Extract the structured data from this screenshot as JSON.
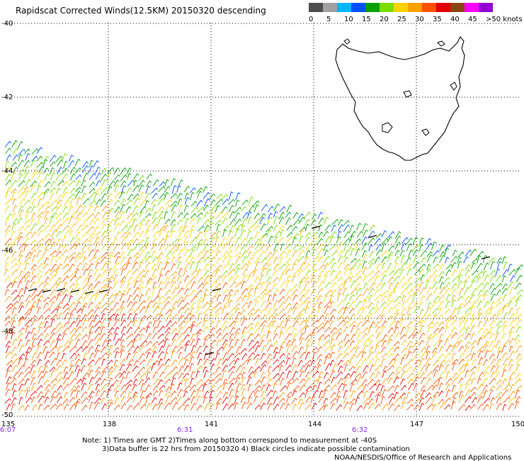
{
  "title": "Rapidscat Corrected Winds(12.5KM) 20150320 descending",
  "legend": {
    "colors": [
      "#4d4d4d",
      "#a0a0a0",
      "#00b4ff",
      "#0050ff",
      "#00a000",
      "#7ddc00",
      "#ffd200",
      "#ffa000",
      "#ff5000",
      "#e00000",
      "#8b4513",
      "#ff00ff",
      "#9400d3"
    ],
    "labels": [
      "0",
      "5",
      "10",
      "15",
      "20",
      "25",
      "30",
      "35",
      "40",
      "45",
      ">50 knots"
    ]
  },
  "axes": {
    "lon_labels": [
      "135",
      "138",
      "141",
      "144",
      "147",
      "150"
    ],
    "lat_labels": [
      "-40",
      "-42",
      "-44",
      "-46",
      "-48",
      "-50"
    ],
    "time_labels": [
      "6:07",
      "6:31",
      "6:32"
    ]
  },
  "notes": {
    "line1": "Note: 1) Times are GMT 2)Times along bottom correspond to measurement at -40S",
    "line2": "3)Data buffer is 22 hrs from 20150320 4) Black circles indicate possible contamination",
    "credit": "NOAA/NESDIS/Office of Research and Applications"
  }
}
